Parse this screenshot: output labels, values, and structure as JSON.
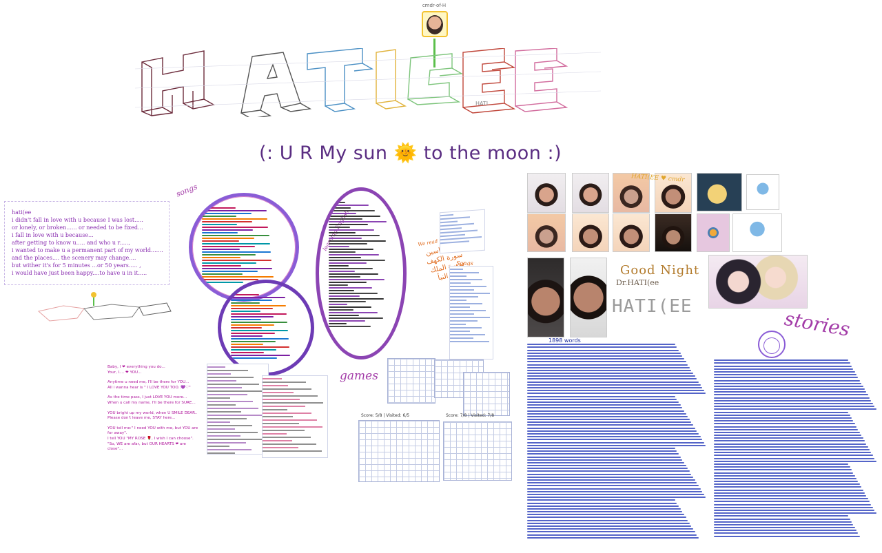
{
  "avatar": {
    "name": "cmdr-of-H"
  },
  "title": {
    "text": "HATI(EE",
    "small": "HATI"
  },
  "subtitle": {
    "left": "(: U R My sun",
    "sun": "🌞",
    "right": "to the moon  :)"
  },
  "poem": {
    "lines": [
      "hati(ee",
      "i didn't fall in love with u because I was lost.....",
      "or lonely, or broken...... or needed to be fixed...",
      "i fall in love with u because...",
      "after getting to know u..... and who u r.....,",
      "i wanted to make u a permanent part of my world.......",
      "and the places.... the scenery may change....",
      "but wither it's for 5 minutes ...or 50 years..... ,",
      "i would have just been happy....to have u in it....."
    ]
  },
  "love_text": {
    "lines": [
      "Baby, I ❤ everything you do...",
      "Your, I.... ❤ YOU...",
      "",
      "Anytime u need me, I'll be there for YOU...",
      "All i  wanna hear is \" I LOVE YOU TOO..💜♡\"",
      "",
      "As the time pass, I just LOVE YOU more...",
      "When u call my name, I'll be there for SURE...",
      "",
      "YOU bright up my world, when U SMILE DEAR..",
      "Please don't leave me, STAY here...",
      "",
      "YOU tell me:\" I need YOU with me, but YOU are",
      "for away\".",
      "I tell YOU \"MY ROSE 🌹, I wish I can choose\".",
      "\"So, WE are afar, but OUR HEARTS ❤ are",
      "close\"..."
    ]
  },
  "labels": {
    "songs": "songs",
    "learning": "learning English",
    "games": "games",
    "songs2": "Songs",
    "stories": "stories",
    "words": "1898 words",
    "photo_caption": "HATI(EE ♥ cmdr",
    "arabic_title": "We read together",
    "arabic_items": [
      "سورة ياسين",
      "سورة الكهف",
      "سورة الملك",
      "سورة النبأ"
    ]
  },
  "games": {
    "score1": "Score: 5/8 | Visited: 6/5",
    "score2": "Score: 7/8 | Visited: 7/8"
  },
  "good_night": {
    "line1": "Good Night",
    "line2": "Dr.HATI(ee",
    "line3": "HATI(EE"
  },
  "colors": {
    "subtitle": "#5a2d82",
    "poem": "#8a2fb0",
    "love_text": "#b0179c",
    "story_text": "#2438b8",
    "circle_accent": "#8a5cd6"
  },
  "icons": [
    "sunflower-avatar-icon",
    "sun-icon",
    "rose-icon",
    "heart-icon"
  ]
}
